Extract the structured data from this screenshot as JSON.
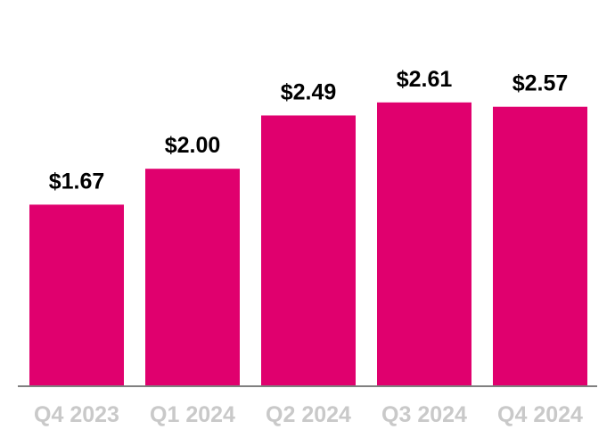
{
  "chart_data": {
    "type": "bar",
    "categories": [
      "Q4 2023",
      "Q1 2024",
      "Q2 2024",
      "Q3 2024",
      "Q4 2024"
    ],
    "values": [
      1.67,
      2.0,
      2.49,
      2.61,
      2.57
    ],
    "value_labels": [
      "$1.67",
      "$2.00",
      "$2.49",
      "$2.61",
      "$2.57"
    ],
    "title": "",
    "xlabel": "",
    "ylabel": "",
    "ylim": [
      0,
      3.15
    ],
    "grid": false,
    "legend": "none",
    "colors": {
      "bar": "#e0006e",
      "value_label": "#000000",
      "tick_label": "#c9c9c9",
      "axis": "#808080"
    }
  }
}
